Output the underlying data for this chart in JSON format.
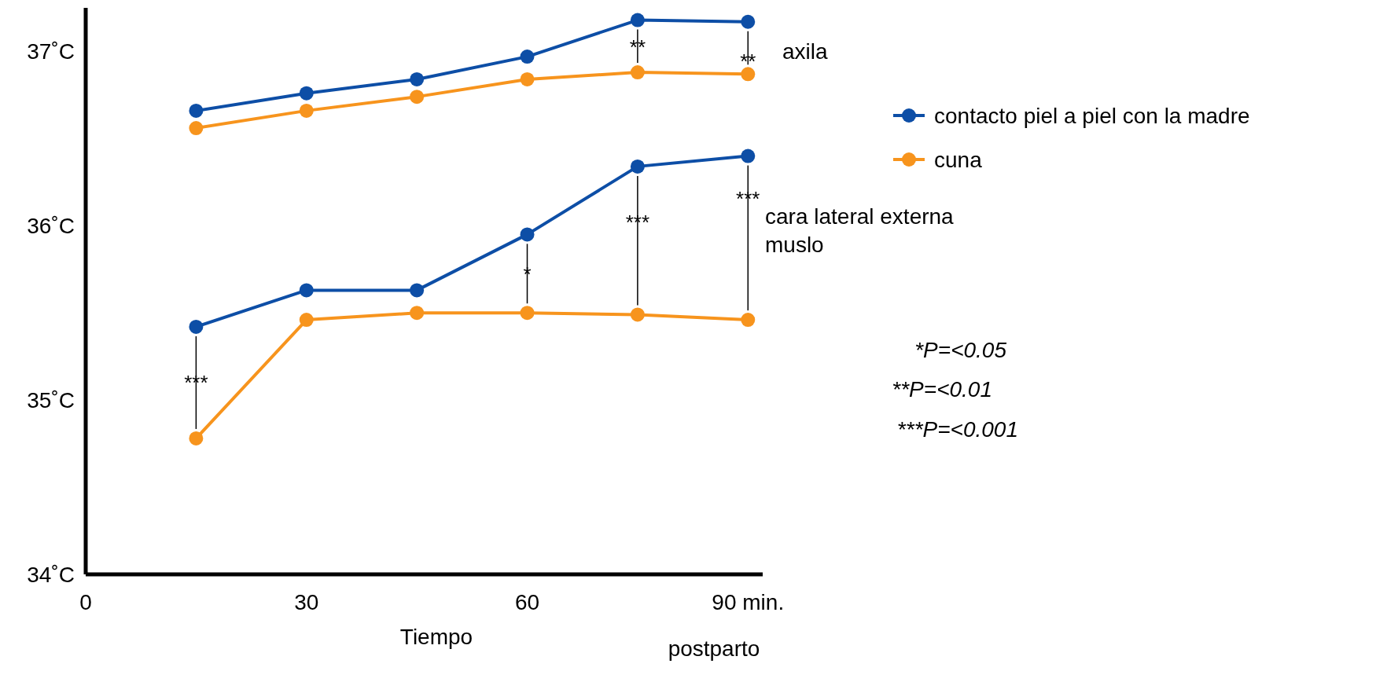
{
  "chart_data": {
    "type": "line",
    "x": [
      15,
      30,
      45,
      60,
      75,
      90
    ],
    "series": [
      {
        "name": "contacto piel a piel con la madre",
        "color": "#0d4ea6",
        "values": [
          36.66,
          36.76,
          36.84,
          36.97,
          37.18,
          37.17
        ]
      },
      {
        "name": "cuna",
        "color": "#f7941d",
        "values": [
          36.56,
          36.66,
          36.74,
          36.84,
          36.88,
          36.87
        ]
      },
      {
        "color": "#0d4ea6",
        "values": [
          35.42,
          35.63,
          35.63,
          35.95,
          36.34,
          36.4
        ]
      },
      {
        "color": "#f7941d",
        "values": [
          34.78,
          35.46,
          35.5,
          35.5,
          35.49,
          35.46
        ]
      }
    ],
    "xlim": [
      0,
      92
    ],
    "xticks": [
      0,
      30,
      60,
      {
        "value": 90,
        "label": "90 min."
      }
    ],
    "ylim": [
      34,
      37.25
    ],
    "yticks": [
      {
        "value": 34,
        "label": "34˚C"
      },
      {
        "value": 35,
        "label": "35˚C"
      },
      {
        "value": 36,
        "label": "36˚C"
      },
      {
        "value": 37,
        "label": "37˚C"
      }
    ],
    "xlabel": "Tiempo",
    "marker": "circle",
    "line_style": "solid",
    "grid": false,
    "legend": "right",
    "annotations": [
      "axila",
      "cara lateral externa muslo",
      "*P=<0.05",
      "**P=<0.01",
      "***P=<0.001",
      "postparto",
      {
        "text": "**",
        "x": 75,
        "y": 37.18
      },
      {
        "text": "**",
        "x": 90,
        "y": 37.17
      },
      {
        "text": "***",
        "x": 15,
        "y": 35.42
      },
      {
        "text": "*",
        "x": 60,
        "y": 35.95
      },
      {
        "text": "***",
        "x": 75,
        "y": 36.34
      },
      {
        "text": "***",
        "x": 90,
        "y": 36.4
      }
    ]
  }
}
